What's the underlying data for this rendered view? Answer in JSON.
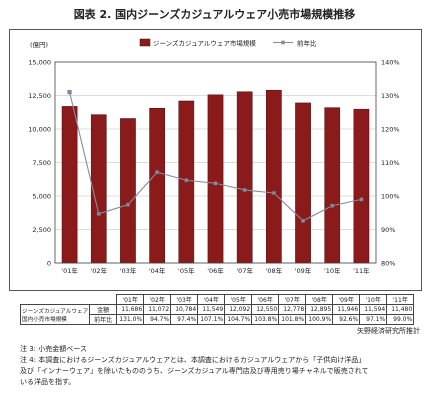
{
  "title": "図表 2. 国内ジーンズカジュアルウェア小売市場規模推移",
  "chart_data": {
    "type": "bar+line",
    "left_axis_unit": "(億円)",
    "categories": [
      "'01年",
      "'02年",
      "'03年",
      "'04年",
      "'05年",
      "'06年",
      "'07年",
      "'08年",
      "'09年",
      "'10年",
      "'11年"
    ],
    "series": [
      {
        "name": "ジーンズカジュアルウェア市場規模",
        "kind": "bar",
        "axis": "left",
        "values": [
          11686,
          11072,
          10784,
          11549,
          12092,
          12550,
          12778,
          12895,
          11946,
          11594,
          11480
        ]
      },
      {
        "name": "前年比",
        "kind": "line",
        "axis": "right",
        "unit": "%",
        "values": [
          131.0,
          94.7,
          97.4,
          107.1,
          104.7,
          103.8,
          101.8,
          100.9,
          92.6,
          97.1,
          99.0
        ]
      }
    ],
    "left_axis": {
      "min": 0,
      "max": 15000,
      "ticks": [
        "0",
        "2,500",
        "5,000",
        "7,500",
        "10,000",
        "12,500",
        "15,000"
      ]
    },
    "right_axis": {
      "min": 80,
      "max": 140,
      "ticks": [
        "80%",
        "90%",
        "100%",
        "110%",
        "120%",
        "130%",
        "140%"
      ]
    },
    "legend_position": "top-center",
    "bar_color": "#8b1a1a",
    "line_color": "#8a8a9a"
  },
  "table": {
    "row_header": "ジーンズカジュアルウェア国内小売市場規模",
    "row_header_line1": "ジーンズカジュアルウェア",
    "row_header_line2": "国内小売市場規模",
    "years": [
      "'01年",
      "'02年",
      "'03年",
      "'04年",
      "'05年",
      "'06年",
      "'07年",
      "'08年",
      "'09年",
      "'10年",
      "'11年"
    ],
    "amount_label": "金額",
    "amounts": [
      "11,686",
      "11,072",
      "10,784",
      "11,549",
      "12,092",
      "12,550",
      "12,778",
      "12,895",
      "11,946",
      "11,594",
      "11,480"
    ],
    "yoy_label": "前年比",
    "yoy": [
      "131.0%",
      "94.7%",
      "97.4%",
      "107.1%",
      "104.7%",
      "103.8%",
      "101.8%",
      "100.9%",
      "92.6%",
      "97.1%",
      "99.0%"
    ]
  },
  "source": "矢野経済研究所推計",
  "notes": [
    "注 3: 小売金額ベース",
    "注 4: 本調査におけるジーンズカジュアルウェアとは、本調査におけるカジュアルウェアから「子供向け洋品」",
    "及び「インナーウェア」を除いたもののうち、ジーンズカジュアル専門店及び専用売り場チャネルで販売されて",
    "いる洋品を指す。"
  ]
}
